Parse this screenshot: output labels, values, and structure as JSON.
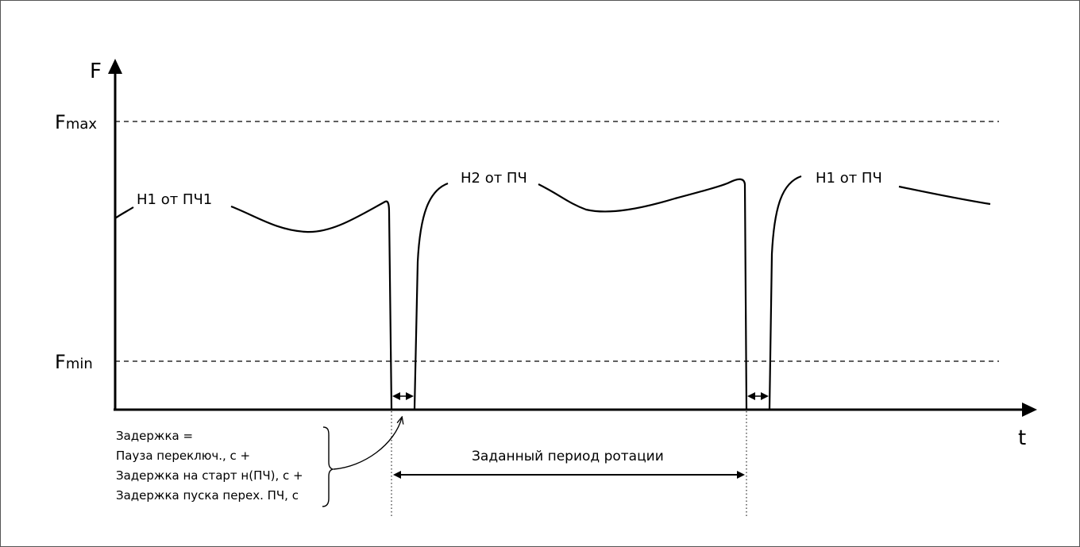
{
  "axes": {
    "y_label": "F",
    "x_label": "t"
  },
  "levels": {
    "fmax": {
      "main": "F",
      "sub": "max"
    },
    "fmin": {
      "main": "F",
      "sub": "min"
    }
  },
  "curve_labels": {
    "pump1_first": "Н1 от ПЧ1",
    "pump2": "Н2 от ПЧ",
    "pump1_second": "Н1 от ПЧ"
  },
  "delay_note": {
    "lines": [
      "Задержка =",
      "Пауза переключ., с +",
      "Задержка на старт н(ПЧ), с +",
      "Задержка пуска перех. ПЧ, с"
    ]
  },
  "rotation_period": {
    "label": "Заданный период ротации"
  },
  "colors": {
    "stroke": "#000000",
    "background": "#ffffff",
    "frame": "#555555"
  }
}
